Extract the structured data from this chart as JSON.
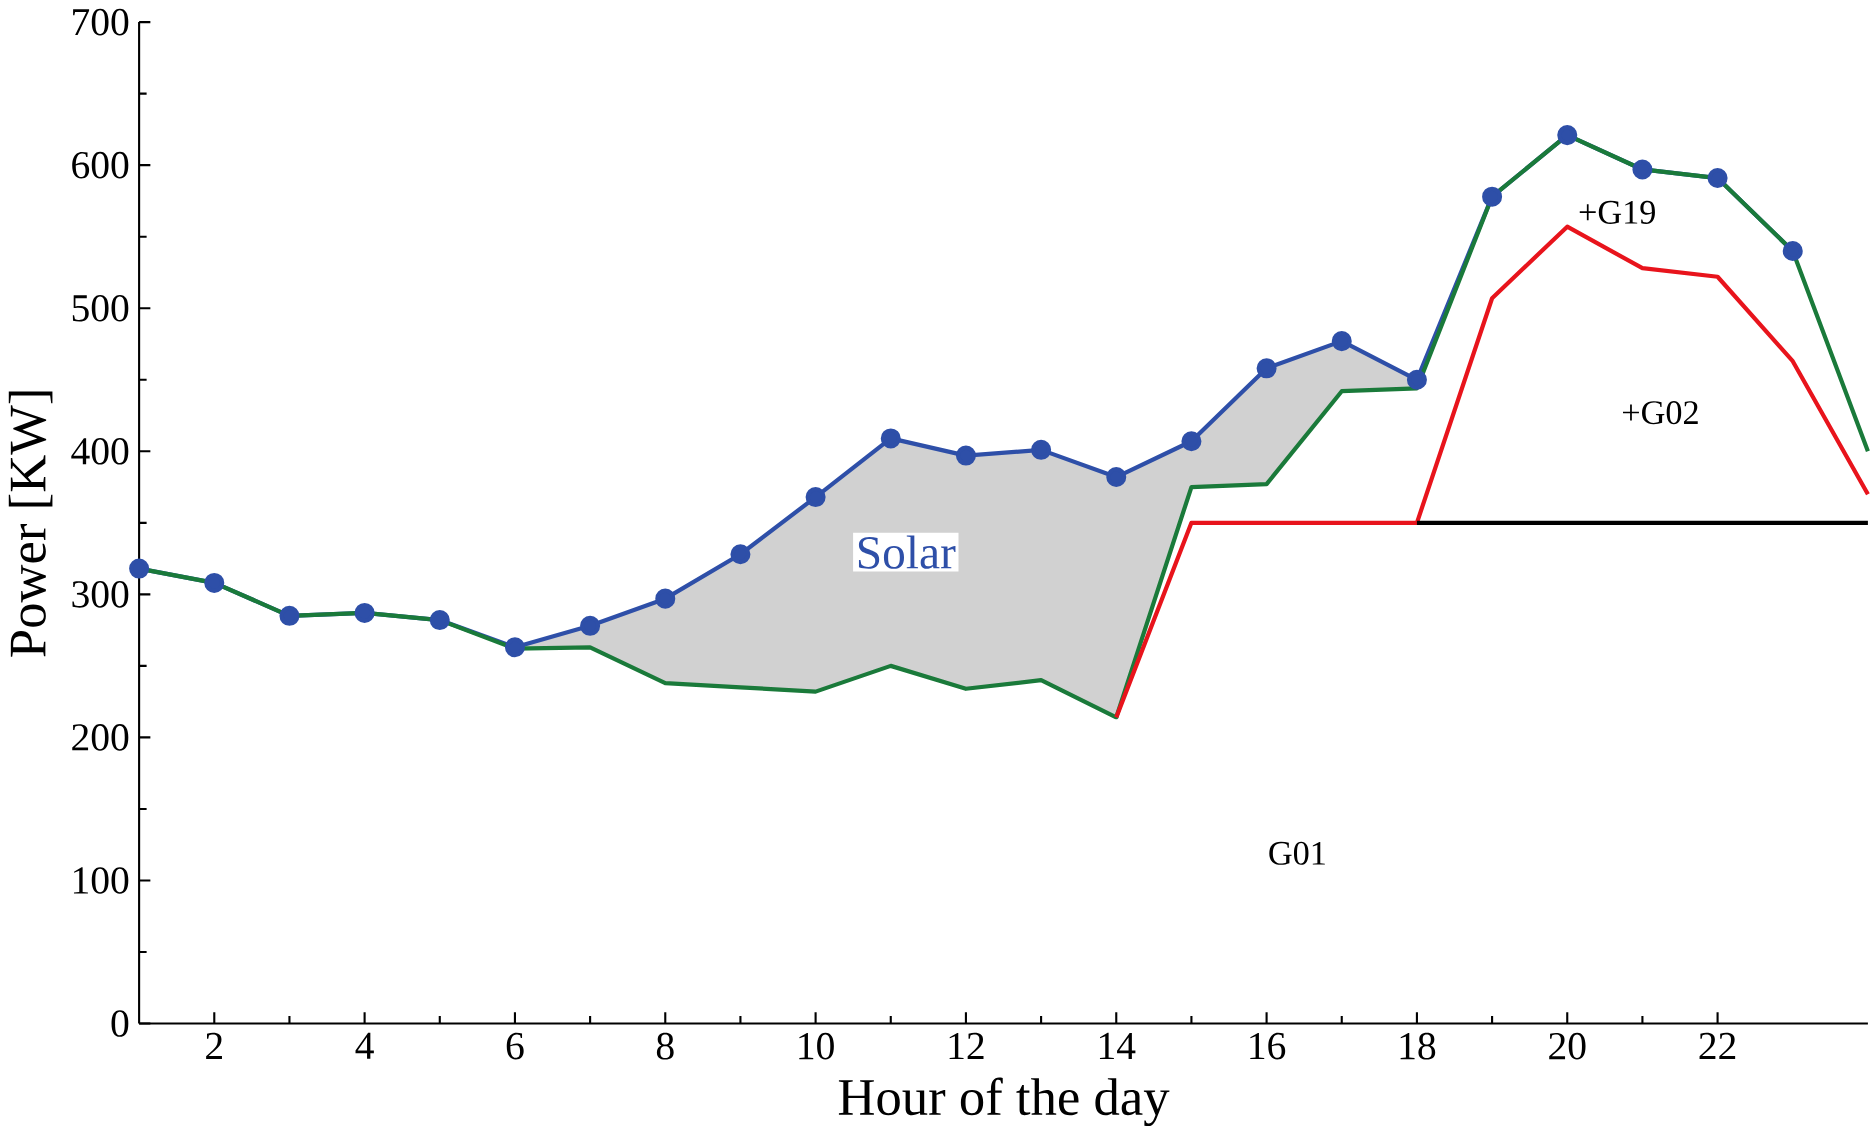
{
  "chart_data": {
    "type": "line",
    "xlabel": "Hour of the day",
    "ylabel": "Power [KW]",
    "xlim": [
      1,
      24
    ],
    "ylim": [
      0,
      700
    ],
    "xticks": [
      2,
      4,
      6,
      8,
      10,
      12,
      14,
      16,
      18,
      20,
      22
    ],
    "yticks": [
      0,
      100,
      200,
      300,
      400,
      500,
      600,
      700
    ],
    "series": [
      {
        "name": "Solar",
        "color": "#2e4fa8",
        "marker": "circle",
        "x": [
          1,
          2,
          3,
          4,
          5,
          6,
          7,
          8,
          9,
          10,
          11,
          12,
          13,
          14,
          15,
          16,
          17,
          18,
          19,
          20,
          21,
          22,
          23
        ],
        "values": [
          318,
          308,
          285,
          287,
          282,
          263,
          278,
          297,
          328,
          368,
          409,
          397,
          401,
          382,
          407,
          458,
          477,
          450,
          578,
          621,
          597,
          591,
          540
        ],
        "lower": [
          318,
          308,
          285,
          287,
          282,
          262,
          263,
          238,
          235,
          232,
          250,
          234,
          240,
          214,
          375,
          377,
          442,
          444,
          578,
          621,
          597,
          591,
          540
        ],
        "upper": [
          318,
          308,
          285,
          287,
          282,
          263,
          278,
          297,
          328,
          368,
          409,
          397,
          401,
          382,
          407,
          458,
          477,
          450,
          578,
          621,
          597,
          591,
          540
        ]
      },
      {
        "color": "#1a7a3a",
        "x": [
          1,
          2,
          3,
          4,
          5,
          6,
          7,
          8,
          9,
          10,
          11,
          12,
          13,
          14,
          15,
          16,
          17,
          18,
          19,
          20,
          21,
          22,
          23,
          24
        ],
        "values": [
          318,
          308,
          285,
          287,
          282,
          262,
          263,
          238,
          235,
          232,
          250,
          234,
          240,
          214,
          375,
          377,
          442,
          444,
          578,
          621,
          597,
          591,
          540,
          400
        ]
      },
      {
        "color": "#e8141c",
        "x": [
          14,
          15,
          16,
          17,
          18,
          19,
          20,
          21,
          22,
          23,
          24
        ],
        "values": [
          214,
          350,
          350,
          350,
          350,
          507,
          557,
          528,
          522,
          463,
          370
        ]
      },
      {
        "color": "#000000",
        "x": [
          18,
          24
        ],
        "values": [
          350,
          350
        ]
      }
    ],
    "annotations": [
      "+G19",
      "+G02",
      "G01"
    ]
  }
}
